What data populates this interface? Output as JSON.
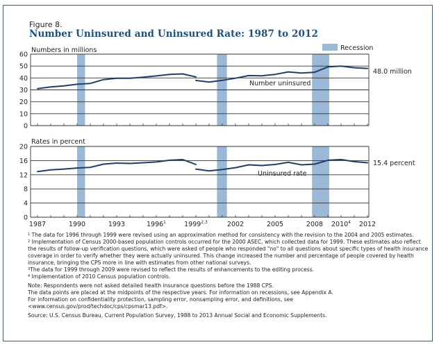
{
  "figure": {
    "label": "Figure 8.",
    "title": "Number Uninsured and Uninsured Rate: 1987 to 2012"
  },
  "colors": {
    "frame": "#3f5a6a",
    "title": "#1d4f7a",
    "line": "#1f3f66",
    "recession": "#9bb8d6",
    "grid": "#333333"
  },
  "legend": {
    "recession_label": "Recession"
  },
  "chart_data": [
    {
      "type": "line",
      "title": "Numbers in millions",
      "ylabel": "Numbers in millions",
      "ylim": [
        0,
        60
      ],
      "yticks": [
        "0",
        "10",
        "20",
        "30",
        "40",
        "50",
        "60"
      ],
      "ytick_values": [
        0,
        10,
        20,
        30,
        40,
        50,
        60
      ],
      "series_label": "Number uninsured",
      "end_label": "48.0 million",
      "segments": [
        {
          "x": [
            1987,
            1988,
            1989,
            1990,
            1991,
            1992,
            1993,
            1994,
            1995,
            1996,
            1997,
            1998,
            1999
          ],
          "y": [
            31.0,
            32.5,
            33.4,
            34.7,
            35.4,
            38.6,
            39.7,
            39.7,
            40.6,
            41.7,
            43.0,
            43.4,
            40.9
          ]
        },
        {
          "x": [
            1999,
            2000,
            2001,
            2002,
            2003,
            2004,
            2005,
            2006,
            2007,
            2008,
            2009,
            2010,
            2011,
            2012
          ],
          "y": [
            37.9,
            36.6,
            38.0,
            39.8,
            42.0,
            41.8,
            43.0,
            45.1,
            44.1,
            44.8,
            49.3,
            50.0,
            48.6,
            48.0
          ]
        }
      ]
    },
    {
      "type": "line",
      "title": "Rates in percent",
      "ylabel": "Rates in percent",
      "ylim": [
        0,
        20
      ],
      "yticks": [
        "0",
        "4",
        "8",
        "12",
        "16",
        "20"
      ],
      "ytick_values": [
        0,
        4,
        8,
        12,
        16,
        20
      ],
      "series_label": "Uninsured rate",
      "end_label": "15.4 percent",
      "segments": [
        {
          "x": [
            1987,
            1988,
            1989,
            1990,
            1991,
            1992,
            1993,
            1994,
            1995,
            1996,
            1997,
            1998,
            1999
          ],
          "y": [
            12.9,
            13.4,
            13.6,
            13.9,
            14.1,
            15.0,
            15.3,
            15.2,
            15.4,
            15.6,
            16.1,
            16.3,
            14.9
          ]
        },
        {
          "x": [
            1999,
            2000,
            2001,
            2002,
            2003,
            2004,
            2005,
            2006,
            2007,
            2008,
            2009,
            2010,
            2011,
            2012
          ],
          "y": [
            13.6,
            13.1,
            13.5,
            14.0,
            14.8,
            14.6,
            14.9,
            15.5,
            14.8,
            15.0,
            16.1,
            16.3,
            15.7,
            15.4
          ]
        }
      ]
    }
  ],
  "x_axis": {
    "range": [
      1987,
      2012
    ],
    "labels": [
      {
        "year": 1987,
        "text": "1987",
        "sup": ""
      },
      {
        "year": 1990,
        "text": "1990",
        "sup": ""
      },
      {
        "year": 1993,
        "text": "1993",
        "sup": ""
      },
      {
        "year": 1996,
        "text": "1996",
        "sup": "1"
      },
      {
        "year": 1999,
        "text": "1999",
        "sup": "2,3"
      },
      {
        "year": 2002,
        "text": "2002",
        "sup": ""
      },
      {
        "year": 2005,
        "text": "2005",
        "sup": ""
      },
      {
        "year": 2008,
        "text": "2008",
        "sup": ""
      },
      {
        "year": 2010,
        "text": "2010",
        "sup": "4"
      },
      {
        "year": 2012,
        "text": "2012",
        "sup": ""
      }
    ]
  },
  "recessions": [
    {
      "start": 1990.0,
      "end": 1990.6
    },
    {
      "start": 2000.6,
      "end": 2001.35
    },
    {
      "start": 2007.8,
      "end": 2009.1
    }
  ],
  "notes": {
    "n1_mark": "1",
    "n1": "The data for 1996 through 1999 were revised using an approximation method for consistency with the revision to the 2004 and 2005 estimates.",
    "n2_mark": "2",
    "n2": "Implementation of Census 2000-based population controls occurred for the 2000 ASEC, which collected data for 1999. These estimates also reflect the results of follow-up verification questions, which were asked of people who responded \"no\" to all questions about specific types of health insurance coverage in order to verify whether they were actually uninsured. This change increased the number and percentage of people covered by health insurance, bringing the CPS more in line with estimates from other national surveys.",
    "n3_mark": "3",
    "n3": "The data for 1999 through 2009 were revised to reflect the results of enhancements to the editing process.",
    "n4_mark": "4",
    "n4": "Implementation of 2010 Census population controls.",
    "note1": "Note: Respondents were not asked detailed health insurance questions before the 1988 CPS.",
    "note2": "The data points are placed at the midpoints of the respective years. For information on recessions, see Appendix A.",
    "note3": "For information on confidentiality protection, sampling error, nonsampling error, and definitions, see",
    "note4": "<www.census.gov/prod/techdoc/cps/cpsmar13.pdf>.",
    "source": "Source: U.S. Census Bureau, Current Population Survey, 1988 to 2013 Annual Social and Economic Supplements."
  }
}
